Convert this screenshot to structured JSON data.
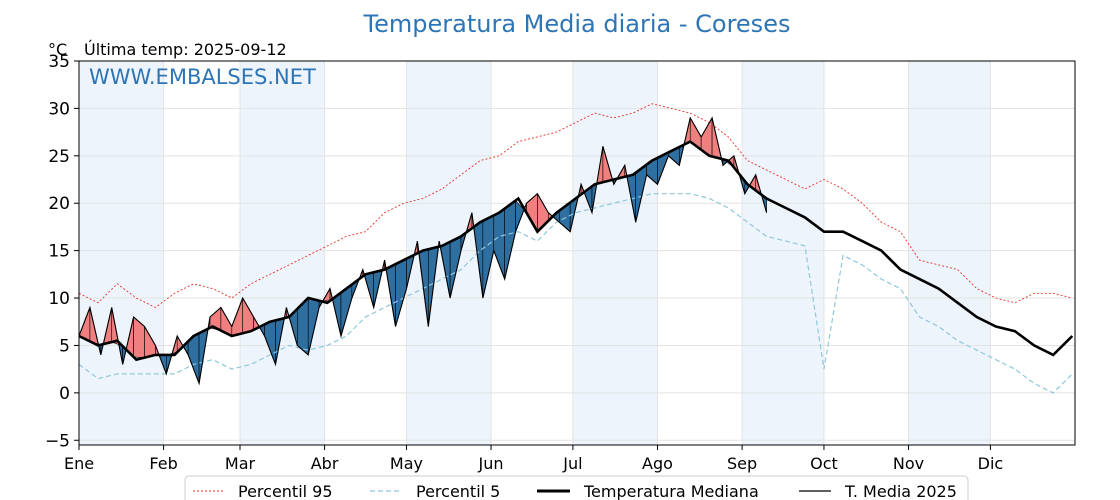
{
  "chart_data": {
    "type": "line",
    "title": "Temperatura Media diaria - Coreses",
    "unit_label": "°C",
    "last_temp_label": "Última temp: 2025-09-12",
    "watermark": "WWW.EMBALSES.NET",
    "ylim": [
      -5.5,
      35
    ],
    "yticks": [
      35,
      30,
      25,
      20,
      15,
      10,
      5,
      0,
      -5
    ],
    "xlim": [
      0,
      365
    ],
    "months": [
      {
        "label": "Ene",
        "day": 0
      },
      {
        "label": "Feb",
        "day": 31
      },
      {
        "label": "Mar",
        "day": 59
      },
      {
        "label": "Abr",
        "day": 90
      },
      {
        "label": "May",
        "day": 120
      },
      {
        "label": "Jun",
        "day": 151
      },
      {
        "label": "Jul",
        "day": 181
      },
      {
        "label": "Ago",
        "day": 212
      },
      {
        "label": "Sep",
        "day": 243
      },
      {
        "label": "Oct",
        "day": 273
      },
      {
        "label": "Nov",
        "day": 304
      },
      {
        "label": "Dic",
        "day": 334
      }
    ],
    "shaded_months": [
      0,
      2,
      4,
      6,
      8,
      10
    ],
    "grid": true,
    "legend_position": "bottom",
    "colors": {
      "p95": "#e8302a",
      "p5": "#8ec8da",
      "median": "#000000",
      "t2025": "#000000",
      "above": "#f08080",
      "below": "#2f6fa0",
      "shade": "#eef4fb",
      "title": "#2e75b6"
    },
    "series": [
      {
        "name": "Percentil 95",
        "style": "dotted",
        "x": [
          0,
          7,
          14,
          21,
          28,
          35,
          42,
          49,
          56,
          63,
          70,
          77,
          84,
          91,
          98,
          105,
          112,
          119,
          126,
          133,
          140,
          147,
          154,
          161,
          168,
          175,
          182,
          189,
          196,
          203,
          210,
          217,
          224,
          231,
          238,
          245,
          252,
          259,
          266,
          273,
          280,
          287,
          294,
          301,
          308,
          315,
          322,
          329,
          336,
          343,
          350,
          357,
          364
        ],
        "y": [
          10.5,
          9.5,
          11.5,
          10,
          9,
          10.5,
          11.5,
          11,
          10,
          11.5,
          12.5,
          13.5,
          14.5,
          15.5,
          16.5,
          17,
          19,
          20,
          20.5,
          21.5,
          23,
          24.5,
          25,
          26.5,
          27,
          27.5,
          28.5,
          29.5,
          29,
          29.5,
          30.5,
          30,
          29.5,
          28.5,
          27,
          24.5,
          23.5,
          22.5,
          21.5,
          22.5,
          21.5,
          20,
          18,
          17,
          14,
          13.5,
          13,
          11,
          10,
          9.5,
          10.5,
          10.5,
          10
        ]
      },
      {
        "name": "Percentil 5",
        "style": "dashed",
        "x": [
          0,
          7,
          14,
          21,
          28,
          35,
          42,
          49,
          56,
          63,
          70,
          77,
          84,
          91,
          98,
          105,
          112,
          119,
          126,
          133,
          140,
          147,
          154,
          161,
          168,
          175,
          182,
          189,
          196,
          203,
          210,
          217,
          224,
          231,
          238,
          245,
          252,
          259,
          266,
          273,
          280,
          287,
          294,
          301,
          308,
          315,
          322,
          329,
          336,
          343,
          350,
          357,
          364
        ],
        "y": [
          3,
          1.5,
          2,
          2,
          2,
          2,
          3,
          3.5,
          2.5,
          3,
          4,
          5,
          4.5,
          5,
          6,
          8,
          9,
          10,
          11,
          12,
          13,
          15,
          16.5,
          17,
          16,
          18,
          19,
          19.5,
          20,
          20.5,
          21,
          21,
          21,
          20.5,
          19.5,
          18,
          16.5,
          16,
          15.5,
          2.5,
          14.5,
          13.5,
          12,
          11,
          8,
          7,
          5.5,
          4.5,
          3.5,
          2.5,
          1,
          0,
          2
        ]
      },
      {
        "name": "Temperatura Mediana",
        "style": "thick",
        "x": [
          0,
          7,
          14,
          21,
          28,
          35,
          42,
          49,
          56,
          63,
          70,
          77,
          84,
          91,
          98,
          105,
          112,
          119,
          126,
          133,
          140,
          147,
          154,
          161,
          168,
          175,
          182,
          189,
          196,
          203,
          210,
          217,
          224,
          231,
          238,
          245,
          252,
          259,
          266,
          273,
          280,
          287,
          294,
          301,
          308,
          315,
          322,
          329,
          336,
          343,
          350,
          357,
          364
        ],
        "y": [
          6,
          5,
          5.5,
          3.5,
          4,
          4,
          6,
          7,
          6,
          6.5,
          7.5,
          8,
          10,
          9.5,
          11,
          12.5,
          13,
          14,
          15,
          15.5,
          16.5,
          18,
          19,
          20.5,
          17,
          19,
          20.5,
          22,
          22.5,
          23,
          24.5,
          25.5,
          26.5,
          25,
          24.5,
          22,
          20.5,
          19.5,
          18.5,
          17,
          17,
          16,
          15,
          13,
          12,
          11,
          9.5,
          8,
          7,
          6.5,
          5,
          4,
          6
        ]
      },
      {
        "name": "T. Media 2025",
        "style": "thin",
        "x": [
          0,
          4,
          8,
          12,
          16,
          20,
          24,
          28,
          32,
          36,
          40,
          44,
          48,
          52,
          56,
          60,
          64,
          68,
          72,
          76,
          80,
          84,
          88,
          92,
          96,
          100,
          104,
          108,
          112,
          116,
          120,
          124,
          128,
          132,
          136,
          140,
          144,
          148,
          152,
          156,
          160,
          164,
          168,
          172,
          176,
          180,
          184,
          188,
          192,
          196,
          200,
          204,
          208,
          212,
          216,
          220,
          224,
          228,
          232,
          236,
          240,
          244,
          248,
          252
        ],
        "y": [
          6,
          9,
          4,
          9,
          3,
          8,
          7,
          5,
          2,
          6,
          4,
          1,
          8,
          9,
          7,
          10,
          8,
          6,
          3,
          9,
          5,
          4,
          9,
          11,
          6,
          10,
          13,
          9,
          14,
          7,
          11,
          16,
          7,
          16,
          10,
          15,
          19,
          10,
          15,
          12,
          17,
          20,
          21,
          19,
          18,
          17,
          22,
          19,
          26,
          22,
          24,
          18,
          23,
          22,
          25,
          24,
          29,
          27,
          29,
          24,
          25,
          21,
          23,
          19
        ]
      }
    ]
  },
  "legend": {
    "items": [
      {
        "label": "Percentil 95"
      },
      {
        "label": "Percentil 5"
      },
      {
        "label": "Temperatura Mediana"
      },
      {
        "label": "T. Media 2025"
      }
    ]
  }
}
